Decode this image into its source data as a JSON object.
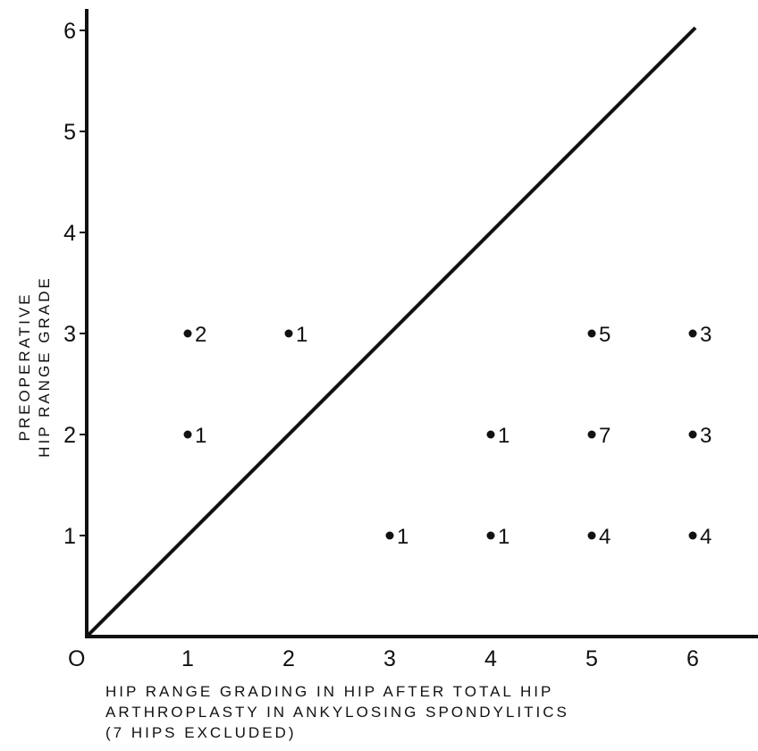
{
  "chart_data": {
    "type": "scatter",
    "title": "",
    "xlabel": [
      "HIP RANGE GRADING IN HIP AFTER TOTAL HIP",
      "ARTHROPLASTY IN ANKYLOSING SPONDYLITICS",
      "(7 HIPS EXCLUDED)"
    ],
    "ylabel": [
      "PREOPERATIVE",
      "HIP RANGE GRADE"
    ],
    "origin_label": "O",
    "xlim": [
      0,
      6.5
    ],
    "ylim": [
      0,
      6.2
    ],
    "x_ticks": [
      1,
      2,
      3,
      4,
      5,
      6
    ],
    "y_ticks": [
      1,
      2,
      3,
      4,
      5,
      6
    ],
    "reference_line": {
      "from": [
        0,
        0
      ],
      "to": [
        6,
        6
      ]
    },
    "points": [
      {
        "x": 1,
        "y": 3,
        "label": "2"
      },
      {
        "x": 2,
        "y": 3,
        "label": "1"
      },
      {
        "x": 5,
        "y": 3,
        "label": "5"
      },
      {
        "x": 6,
        "y": 3,
        "label": "3"
      },
      {
        "x": 1,
        "y": 2,
        "label": "1"
      },
      {
        "x": 4,
        "y": 2,
        "label": "1"
      },
      {
        "x": 5,
        "y": 2,
        "label": "7"
      },
      {
        "x": 6,
        "y": 2,
        "label": "3"
      },
      {
        "x": 3,
        "y": 1,
        "label": "1"
      },
      {
        "x": 4,
        "y": 1,
        "label": "1"
      },
      {
        "x": 5,
        "y": 1,
        "label": "4"
      },
      {
        "x": 6,
        "y": 1,
        "label": "4"
      }
    ]
  }
}
